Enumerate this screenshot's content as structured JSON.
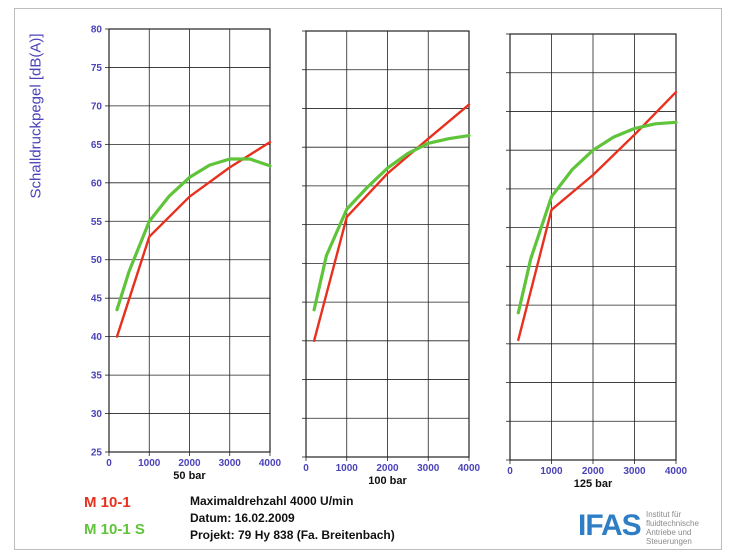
{
  "colors": {
    "m10_1": "#e8301e",
    "m10_1s": "#5fc43a",
    "axis_tick": "#4b43b8",
    "grid": "#222222"
  },
  "chart_data": [
    {
      "type": "line",
      "title": "50 bar",
      "ylabel": "Schalldruckpegel [dB(A)]",
      "xlim": [
        0,
        4000
      ],
      "ylim": [
        25,
        80
      ],
      "xticks": [
        0,
        1000,
        2000,
        3000,
        4000
      ],
      "yticks": [
        25,
        30,
        35,
        40,
        45,
        50,
        55,
        60,
        65,
        70,
        75,
        80
      ],
      "grid": true,
      "series": [
        {
          "name": "M 10-1",
          "color": "#e8301e",
          "x": [
            200,
            1000,
            2000,
            3000,
            4000
          ],
          "y": [
            40.0,
            53.0,
            58.2,
            62.0,
            65.3
          ]
        },
        {
          "name": "M 10-1 S",
          "color": "#5fc43a",
          "x": [
            200,
            500,
            1000,
            1500,
            2000,
            2500,
            3000,
            3500,
            4000
          ],
          "y": [
            43.5,
            48.5,
            55.0,
            58.3,
            60.7,
            62.3,
            63.1,
            63.1,
            62.2
          ]
        }
      ]
    },
    {
      "type": "line",
      "title": "100 bar",
      "ylabel": "",
      "xlim": [
        0,
        4000
      ],
      "ylim": [
        25,
        80
      ],
      "xticks": [
        0,
        1000,
        2000,
        3000,
        4000
      ],
      "yticks": [
        25,
        30,
        35,
        40,
        45,
        50,
        55,
        60,
        65,
        70,
        75,
        80
      ],
      "grid": true,
      "series": [
        {
          "name": "M 10-1",
          "color": "#e8301e",
          "x": [
            200,
            1000,
            2000,
            3000,
            4000
          ],
          "y": [
            40.0,
            56.0,
            61.6,
            66.1,
            70.5
          ]
        },
        {
          "name": "M 10-1 S",
          "color": "#5fc43a",
          "x": [
            200,
            500,
            1000,
            1500,
            2000,
            2500,
            3000,
            3500,
            4000
          ],
          "y": [
            44.0,
            51.0,
            57.0,
            59.8,
            62.3,
            64.2,
            65.5,
            66.1,
            66.5
          ]
        }
      ]
    },
    {
      "type": "line",
      "title": "125 bar",
      "ylabel": "",
      "xlim": [
        0,
        4000
      ],
      "ylim": [
        25,
        80
      ],
      "xticks": [
        0,
        1000,
        2000,
        3000,
        4000
      ],
      "yticks": [
        25,
        30,
        35,
        40,
        45,
        50,
        55,
        60,
        65,
        70,
        75,
        80
      ],
      "grid": true,
      "series": [
        {
          "name": "M 10-1",
          "color": "#e8301e",
          "x": [
            200,
            1000,
            2000,
            3000,
            4000
          ],
          "y": [
            40.5,
            57.3,
            61.8,
            67.0,
            72.5
          ]
        },
        {
          "name": "M 10-1 S",
          "color": "#5fc43a",
          "x": [
            200,
            500,
            1000,
            1500,
            2000,
            2500,
            3000,
            3500,
            4000
          ],
          "y": [
            44.0,
            51.0,
            59.0,
            62.5,
            65.0,
            66.7,
            67.8,
            68.4,
            68.6
          ]
        }
      ]
    }
  ],
  "legend": [
    {
      "label": "M 10-1",
      "color": "#e8301e"
    },
    {
      "label": "M 10-1 S",
      "color": "#5fc43a"
    }
  ],
  "info": {
    "line1": "Maximaldrehzahl 4000 U/min",
    "line2": "Datum: 16.02.2009",
    "line3": "Projekt: 79 Hy 838 (Fa. Breitenbach)"
  },
  "logo": {
    "mark": "IFAS",
    "lines": [
      "Institut für",
      "fluidtechnische",
      "Antriebe und",
      "Steuerungen"
    ]
  }
}
